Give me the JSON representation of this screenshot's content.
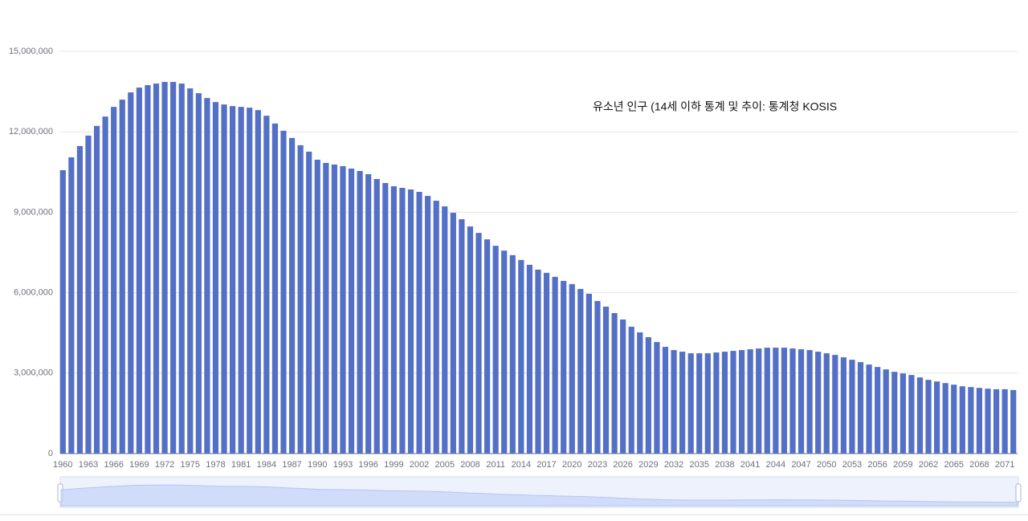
{
  "chart_data": {
    "type": "bar",
    "title": "유소년 인구 (14세 이하 통계 및 추이: 통계청 KOSIS",
    "categories": [
      "1960",
      null,
      null,
      "1963",
      null,
      null,
      "1966",
      null,
      null,
      "1969",
      null,
      null,
      "1972",
      null,
      null,
      "1975",
      null,
      null,
      "1978",
      null,
      null,
      "1981",
      null,
      null,
      "1984",
      null,
      null,
      "1987",
      null,
      null,
      "1990",
      null,
      null,
      "1993",
      null,
      null,
      "1996",
      null,
      null,
      "1999",
      null,
      null,
      "2002",
      null,
      null,
      "2005",
      null,
      null,
      "2008",
      null,
      null,
      "2011",
      null,
      null,
      "2014",
      null,
      null,
      "2017",
      null,
      null,
      "2020",
      null,
      null,
      "2023",
      null,
      null,
      "2026",
      null,
      null,
      "2029",
      null,
      null,
      "2032",
      null,
      null,
      "2035",
      null,
      null,
      "2038",
      null,
      null,
      "2041",
      null,
      null,
      "2044",
      null,
      null,
      "2047",
      null,
      null,
      "2050",
      null,
      null,
      "2053",
      null,
      null,
      "2056",
      null,
      null,
      "2059",
      null,
      null,
      "2062",
      null,
      null,
      "2065",
      null,
      null,
      "2068",
      null,
      null,
      "2071",
      null
    ],
    "values": [
      10570000,
      11050000,
      11470000,
      11860000,
      12220000,
      12570000,
      12930000,
      13200000,
      13470000,
      13650000,
      13740000,
      13800000,
      13860000,
      13860000,
      13800000,
      13620000,
      13440000,
      13260000,
      13110000,
      13020000,
      12960000,
      12930000,
      12900000,
      12810000,
      12600000,
      12310000,
      12040000,
      11770000,
      11500000,
      11260000,
      10960000,
      10840000,
      10780000,
      10720000,
      10630000,
      10540000,
      10420000,
      10240000,
      10090000,
      9970000,
      9910000,
      9850000,
      9760000,
      9610000,
      9430000,
      9220000,
      8980000,
      8740000,
      8470000,
      8230000,
      7990000,
      7750000,
      7570000,
      7400000,
      7220000,
      7040000,
      6860000,
      6740000,
      6590000,
      6440000,
      6320000,
      6140000,
      5960000,
      5690000,
      5480000,
      5240000,
      5000000,
      4730000,
      4520000,
      4340000,
      4160000,
      3980000,
      3860000,
      3800000,
      3740000,
      3740000,
      3740000,
      3770000,
      3800000,
      3830000,
      3860000,
      3890000,
      3920000,
      3950000,
      3950000,
      3950000,
      3920000,
      3890000,
      3860000,
      3800000,
      3740000,
      3680000,
      3590000,
      3500000,
      3410000,
      3320000,
      3230000,
      3140000,
      3050000,
      2990000,
      2930000,
      2840000,
      2750000,
      2690000,
      2630000,
      2570000,
      2510000,
      2480000,
      2450000,
      2420000,
      2400000,
      2400000,
      2370000
    ],
    "color": "#5470c6",
    "ylim": [
      0,
      15000000
    ],
    "yticks": [
      0,
      {
        "value": 3000000,
        "label": "3,000,000"
      },
      {
        "value": 6000000,
        "label": "6,000,000"
      },
      {
        "value": 9000000,
        "label": "9,000,000"
      },
      {
        "value": 12000000,
        "label": "12,000,000"
      },
      {
        "value": 15000000,
        "label": "15,000,000"
      }
    ],
    "grid": true
  }
}
